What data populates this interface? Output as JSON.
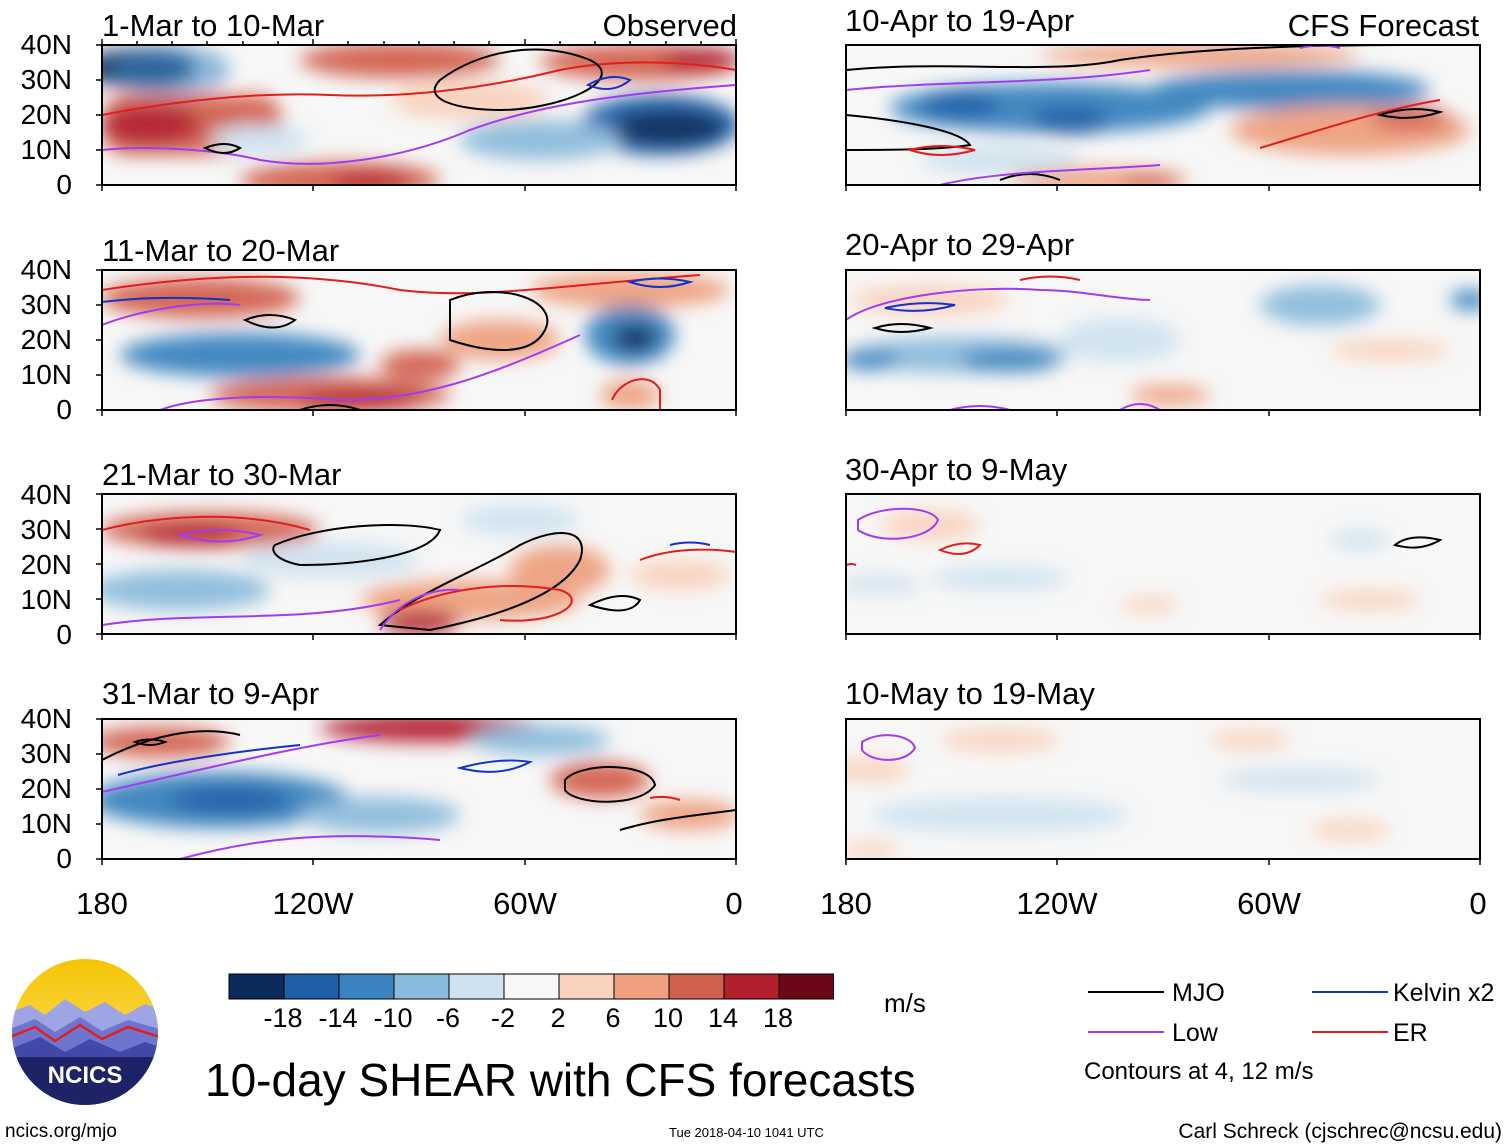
{
  "chart_data": {
    "type": "heatmap",
    "title": "10-day SHEAR with CFS forecasts",
    "units": "m/s",
    "column_labels": [
      "Observed",
      "CFS Forecast"
    ],
    "y_ticks": [
      "40N",
      "30N",
      "20N",
      "10N",
      "0"
    ],
    "x_ticks": [
      "180",
      "120W",
      "60W",
      "0"
    ],
    "lat_range": [
      0,
      40
    ],
    "lon_range": [
      -180,
      0
    ],
    "colorbar": {
      "levels": [
        "-18",
        "-14",
        "-10",
        "-6",
        "-2",
        "2",
        "6",
        "10",
        "14",
        "18"
      ],
      "colors": [
        "#0d2a5c",
        "#1f5fa8",
        "#3b84bf",
        "#8bbbdc",
        "#cfe2ef",
        "#f7f7f7",
        "#f9d1bc",
        "#eea080",
        "#d2604e",
        "#b21f2d",
        "#6b0719"
      ]
    },
    "legend": [
      {
        "label": "MJO",
        "color": "#000000"
      },
      {
        "label": "Kelvin x2",
        "color": "#1432c8"
      },
      {
        "label": "Low",
        "color": "#a23cf0"
      },
      {
        "label": "ER",
        "color": "#e01e1e"
      }
    ],
    "contour_note": "Contours at 4, 12 m/s",
    "panels": [
      {
        "title": "1-Mar to 10-Mar"
      },
      {
        "title": "11-Mar to 20-Mar"
      },
      {
        "title": "21-Mar to 30-Mar"
      },
      {
        "title": "31-Mar to 9-Apr"
      },
      {
        "title": "10-Apr to 19-Apr"
      },
      {
        "title": "20-Apr to 29-Apr"
      },
      {
        "title": "30-Apr to 9-May"
      },
      {
        "title": "10-May to 19-May"
      }
    ]
  },
  "footer": {
    "logo_text": "NCICS",
    "left": "ncics.org/mjo",
    "center": "Tue 2018-04-10 1041 UTC",
    "right": "Carl Schreck (cjschrec@ncsu.edu)"
  }
}
